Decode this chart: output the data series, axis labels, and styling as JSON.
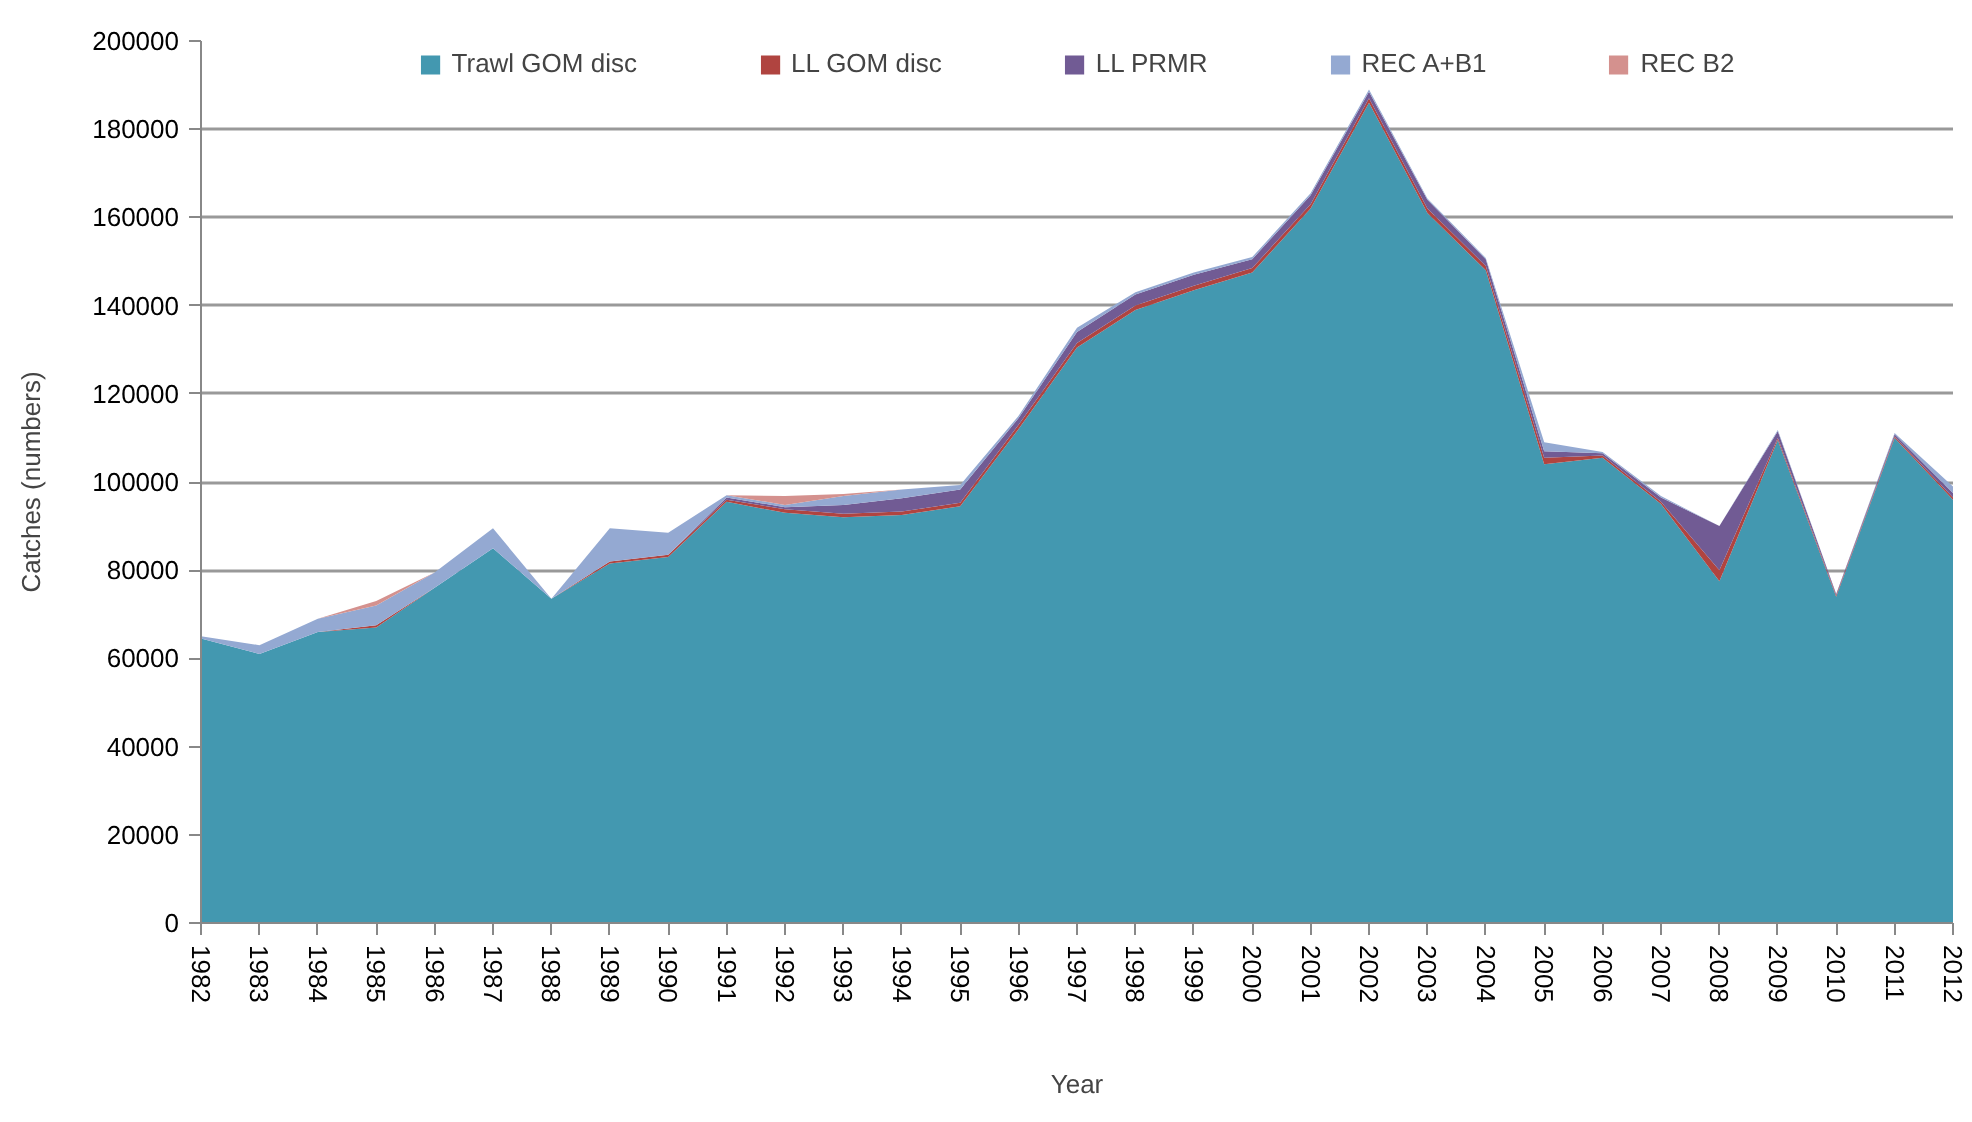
{
  "chart_data": {
    "type": "area",
    "stacked": true,
    "xlabel": "Year",
    "ylabel": "Catches (numbers)",
    "categories": [
      "1982",
      "1983",
      "1984",
      "1985",
      "1986",
      "1987",
      "1988",
      "1989",
      "1990",
      "1991",
      "1992",
      "1993",
      "1994",
      "1995",
      "1996",
      "1997",
      "1998",
      "1999",
      "2000",
      "2001",
      "2002",
      "2003",
      "2004",
      "2005",
      "2006",
      "2007",
      "2008",
      "2009",
      "2010",
      "2011",
      "2012"
    ],
    "series": [
      {
        "name": "Trawl GOM disc",
        "color": "#4398b0",
        "values": [
          64500,
          61000,
          66000,
          67000,
          76000,
          85000,
          73500,
          81500,
          83000,
          95500,
          93000,
          92000,
          92500,
          94500,
          112000,
          130500,
          139000,
          143500,
          147500,
          162000,
          186000,
          161000,
          148000,
          104000,
          105500,
          95000,
          77500,
          109500,
          74000,
          110000,
          96000
        ]
      },
      {
        "name": "LL GOM disc",
        "color": "#b04440",
        "values": [
          0,
          0,
          0,
          500,
          0,
          0,
          0,
          500,
          500,
          500,
          800,
          800,
          800,
          800,
          1000,
          1000,
          1000,
          1000,
          1000,
          1000,
          1000,
          1000,
          1000,
          1500,
          500,
          500,
          2500,
          500,
          300,
          300,
          500
        ]
      },
      {
        "name": "LL PRMR",
        "color": "#715b94",
        "values": [
          0,
          0,
          0,
          0,
          0,
          0,
          0,
          0,
          0,
          500,
          500,
          2000,
          3000,
          3000,
          1500,
          2500,
          2500,
          2500,
          2000,
          2000,
          1500,
          2000,
          1500,
          1500,
          500,
          1000,
          10000,
          1500,
          300,
          500,
          1000
        ]
      },
      {
        "name": "REC A+B1",
        "color": "#94a9d2",
        "values": [
          500,
          2000,
          3000,
          4500,
          3500,
          4500,
          0,
          7500,
          5000,
          500,
          500,
          2000,
          2000,
          1000,
          500,
          1000,
          500,
          500,
          500,
          500,
          500,
          300,
          300,
          2000,
          300,
          300,
          0,
          300,
          0,
          300,
          1500
        ]
      },
      {
        "name": "REC B2",
        "color": "#d4918e",
        "values": [
          0,
          0,
          0,
          1000,
          0,
          0,
          0,
          0,
          0,
          0,
          2000,
          500,
          0,
          0,
          0,
          0,
          0,
          0,
          0,
          0,
          0,
          0,
          0,
          0,
          0,
          0,
          0,
          0,
          0,
          0,
          0
        ]
      }
    ],
    "ylim": [
      0,
      200000
    ],
    "yticks": [
      0,
      20000,
      40000,
      60000,
      80000,
      100000,
      120000,
      140000,
      160000,
      180000,
      200000
    ],
    "grid": "y",
    "legend": "top"
  }
}
